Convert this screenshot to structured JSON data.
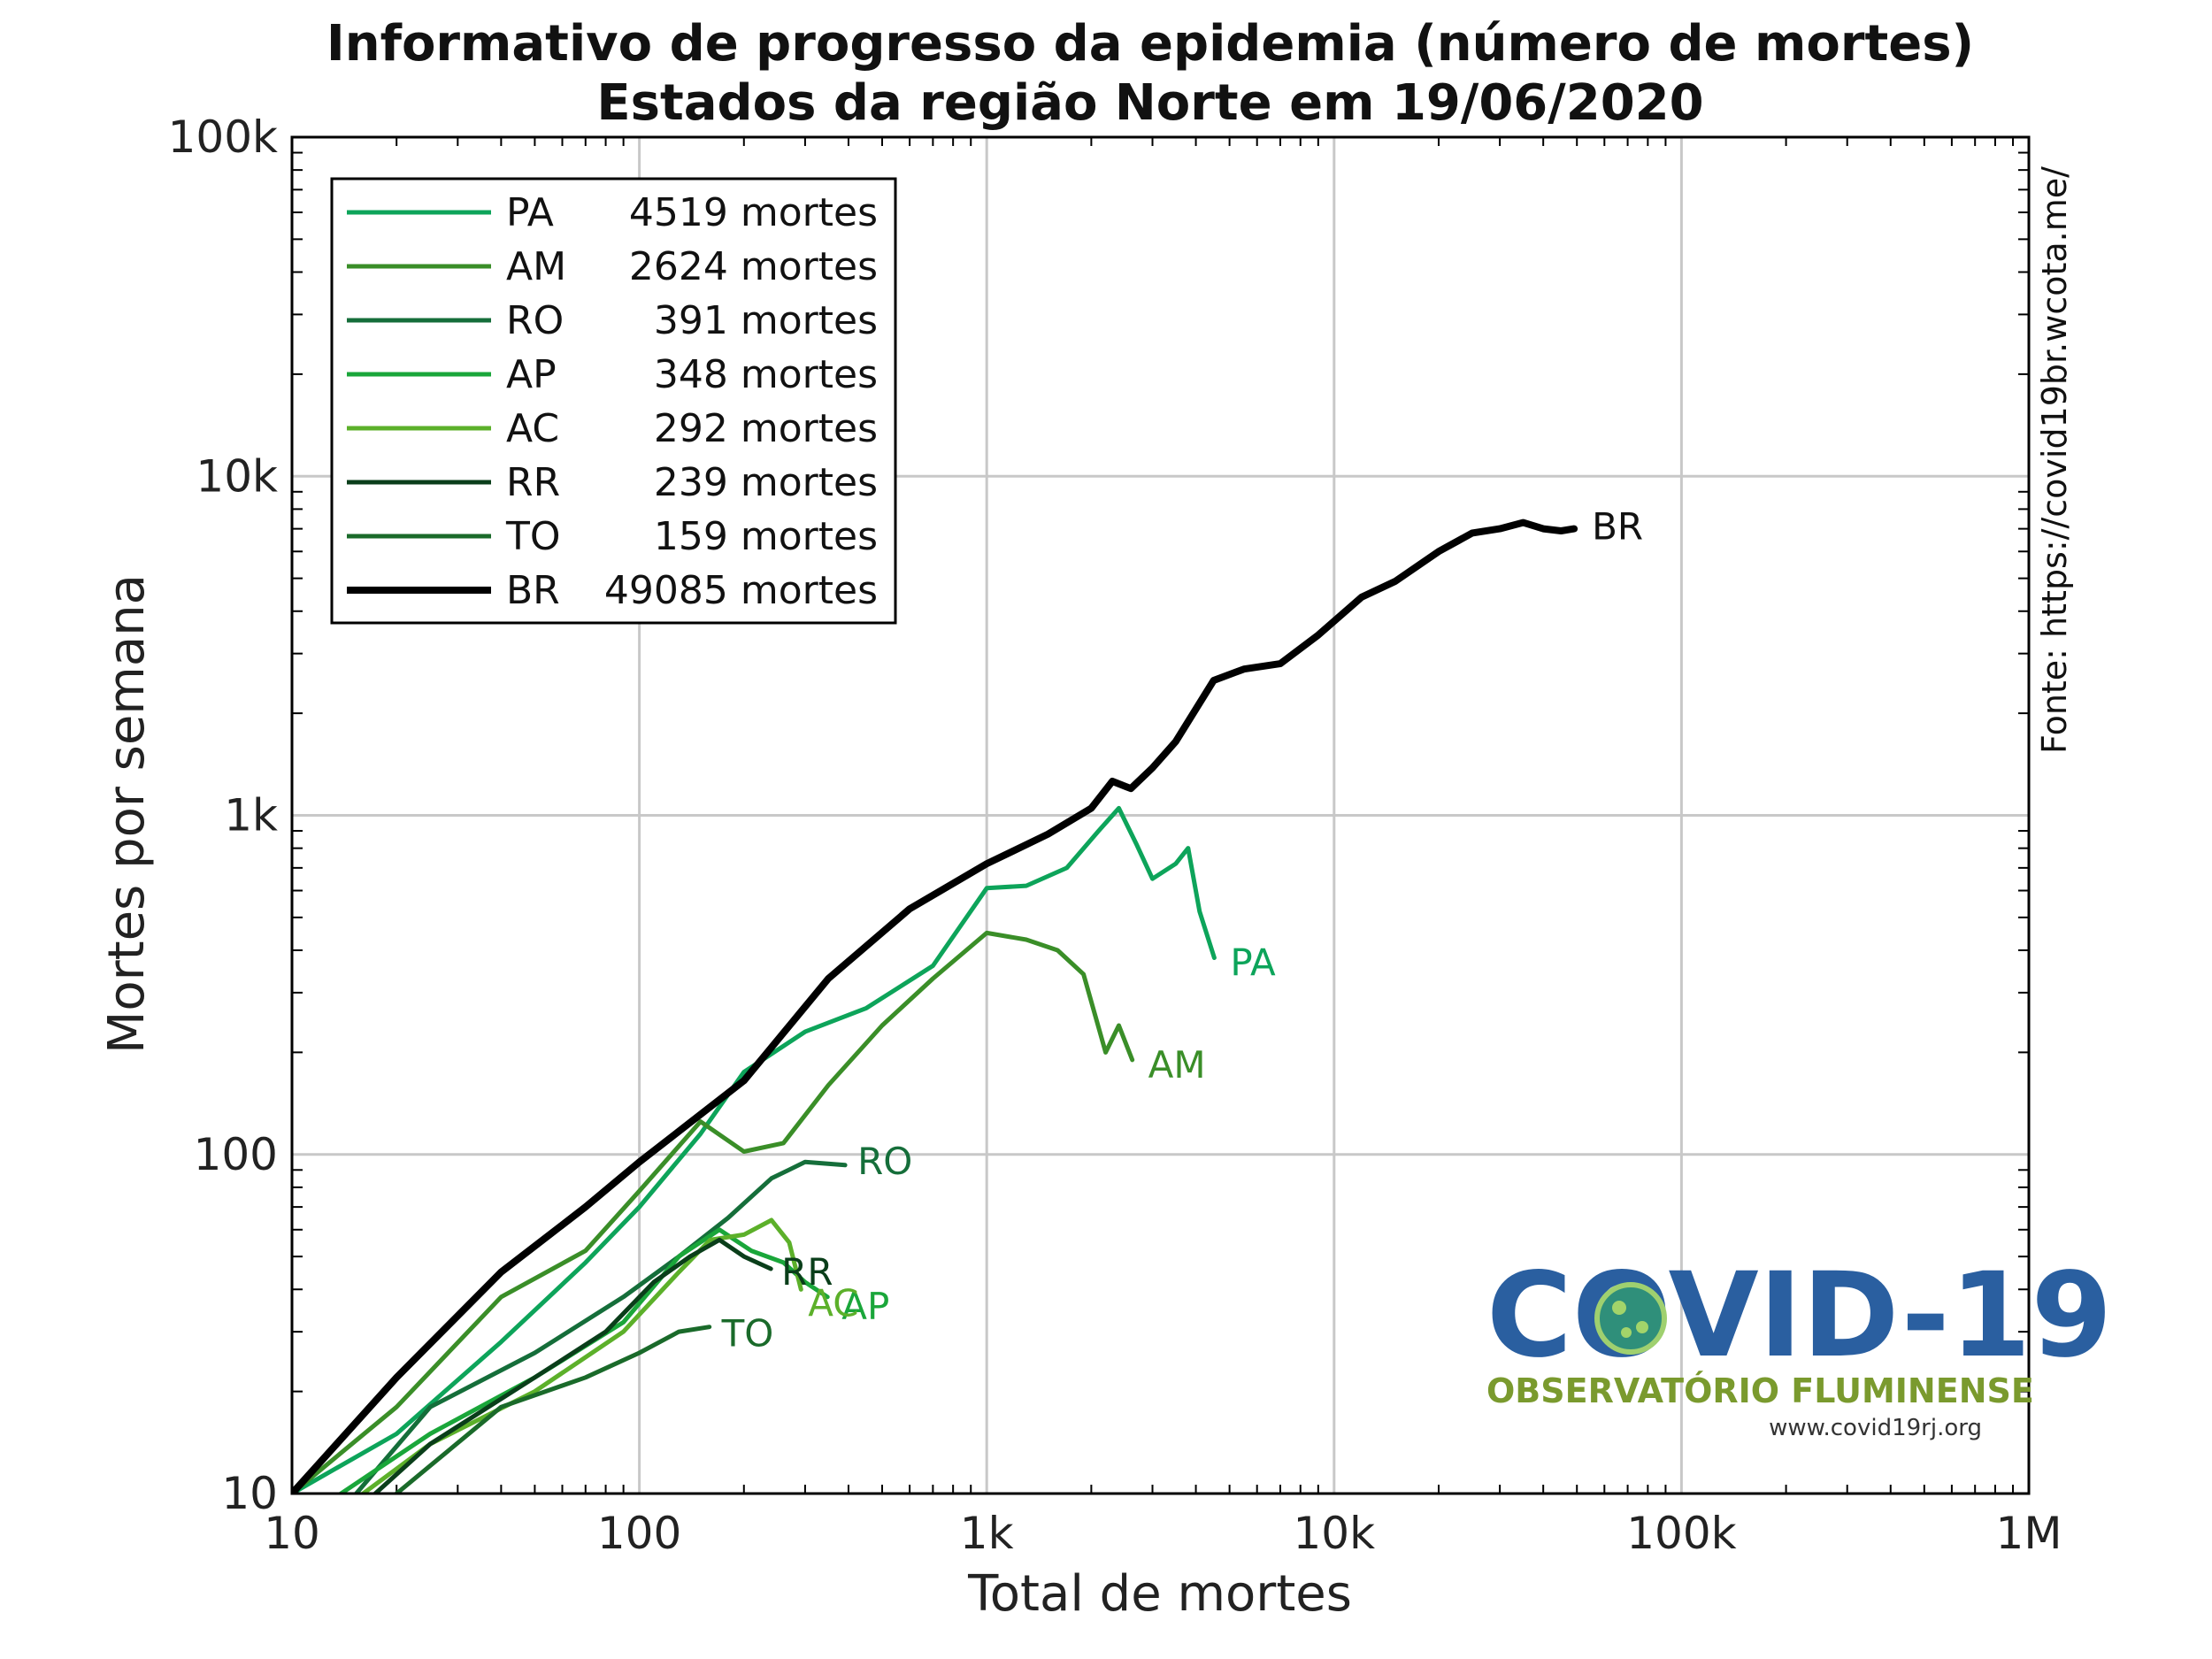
{
  "chart_data": {
    "type": "line",
    "title": "Informativo de progresso da epidemia (número de mortes)",
    "subtitle": "Estados da região Norte em 19/06/2020",
    "xlabel": "Total de mortes",
    "ylabel": "Mortes por semana",
    "xscale": "log",
    "yscale": "log",
    "xlim": [
      10,
      1000000
    ],
    "ylim": [
      10,
      100000
    ],
    "x_ticks": [
      10,
      100,
      1000,
      10000,
      100000,
      1000000
    ],
    "x_tick_labels": [
      "10",
      "100",
      "1k",
      "10k",
      "100k",
      "1M"
    ],
    "y_ticks": [
      10,
      100,
      1000,
      10000,
      100000
    ],
    "y_tick_labels": [
      "10",
      "100",
      "1k",
      "10k",
      "100k"
    ],
    "grid": true,
    "legend_position": "top-left",
    "source_text": "Fonte: https://covid19br.wcota.me/",
    "series": [
      {
        "name": "PA",
        "total_label": "4519 mortes",
        "end_label": "PA",
        "color": "#0da45a",
        "x": [
          10,
          20,
          40,
          70,
          100,
          150,
          200,
          300,
          450,
          700,
          1000,
          1300,
          1700,
          2100,
          2400,
          2700,
          3000,
          3500,
          3800,
          4100,
          4519
        ],
        "y": [
          10,
          15,
          28,
          48,
          70,
          115,
          175,
          230,
          270,
          360,
          610,
          620,
          700,
          900,
          1050,
          820,
          650,
          720,
          800,
          520,
          380
        ]
      },
      {
        "name": "AM",
        "total_label": "2624 mortes",
        "end_label": "AM",
        "color": "#3a8e28",
        "x": [
          10,
          20,
          40,
          70,
          100,
          150,
          200,
          260,
          350,
          500,
          700,
          1000,
          1300,
          1600,
          1900,
          2200,
          2400,
          2624
        ],
        "y": [
          10,
          18,
          38,
          52,
          78,
          125,
          102,
          108,
          160,
          240,
          330,
          450,
          430,
          400,
          340,
          200,
          240,
          190
        ]
      },
      {
        "name": "RO",
        "total_label": "391 mortes",
        "end_label": "RO",
        "color": "#156e3a",
        "x": [
          10,
          25,
          50,
          90,
          130,
          180,
          240,
          300,
          391
        ],
        "y": [
          6,
          18,
          26,
          38,
          50,
          65,
          85,
          95,
          93
        ]
      },
      {
        "name": "AP",
        "total_label": "348 mortes",
        "end_label": "AP",
        "color": "#1aa63a",
        "x": [
          10,
          25,
          50,
          90,
          130,
          170,
          210,
          260,
          300,
          348
        ],
        "y": [
          8,
          15,
          22,
          32,
          50,
          60,
          52,
          48,
          42,
          38
        ]
      },
      {
        "name": "AC",
        "total_label": "292 mortes",
        "end_label": "AC",
        "color": "#5cb02a",
        "x": [
          10,
          25,
          50,
          90,
          130,
          160,
          200,
          240,
          270,
          292
        ],
        "y": [
          7,
          14,
          20,
          30,
          45,
          56,
          58,
          64,
          55,
          40
        ]
      },
      {
        "name": "RR",
        "total_label": "239 mortes",
        "end_label": "RR",
        "color": "#0a3e1a",
        "x": [
          10,
          25,
          50,
          80,
          110,
          140,
          170,
          200,
          239
        ],
        "y": [
          6,
          14,
          22,
          30,
          42,
          50,
          56,
          50,
          46
        ]
      },
      {
        "name": "TO",
        "total_label": "159 mortes",
        "end_label": "TO",
        "color": "#1a6a2a",
        "x": [
          10,
          20,
          40,
          70,
          100,
          130,
          159
        ],
        "y": [
          5,
          10,
          18,
          22,
          26,
          30,
          31
        ]
      },
      {
        "name": "BR",
        "total_label": "49085 mortes",
        "end_label": "BR",
        "color": "#000000",
        "x": [
          10,
          20,
          40,
          70,
          100,
          200,
          350,
          600,
          1000,
          1500,
          2000,
          2300,
          2600,
          3000,
          3500,
          4500,
          5500,
          7000,
          9000,
          12000,
          15000,
          20000,
          25000,
          30000,
          35000,
          40000,
          45000,
          49085
        ],
        "y": [
          10,
          22,
          45,
          70,
          95,
          165,
          330,
          530,
          720,
          880,
          1050,
          1260,
          1200,
          1380,
          1650,
          2500,
          2700,
          2800,
          3400,
          4400,
          4900,
          6000,
          6800,
          7000,
          7300,
          7000,
          6900,
          7000
        ]
      }
    ]
  },
  "logo": {
    "title": "COVID-19",
    "subtitle": "OBSERVATÓRIO FLUMINENSE",
    "url": "www.covid19rj.org"
  }
}
